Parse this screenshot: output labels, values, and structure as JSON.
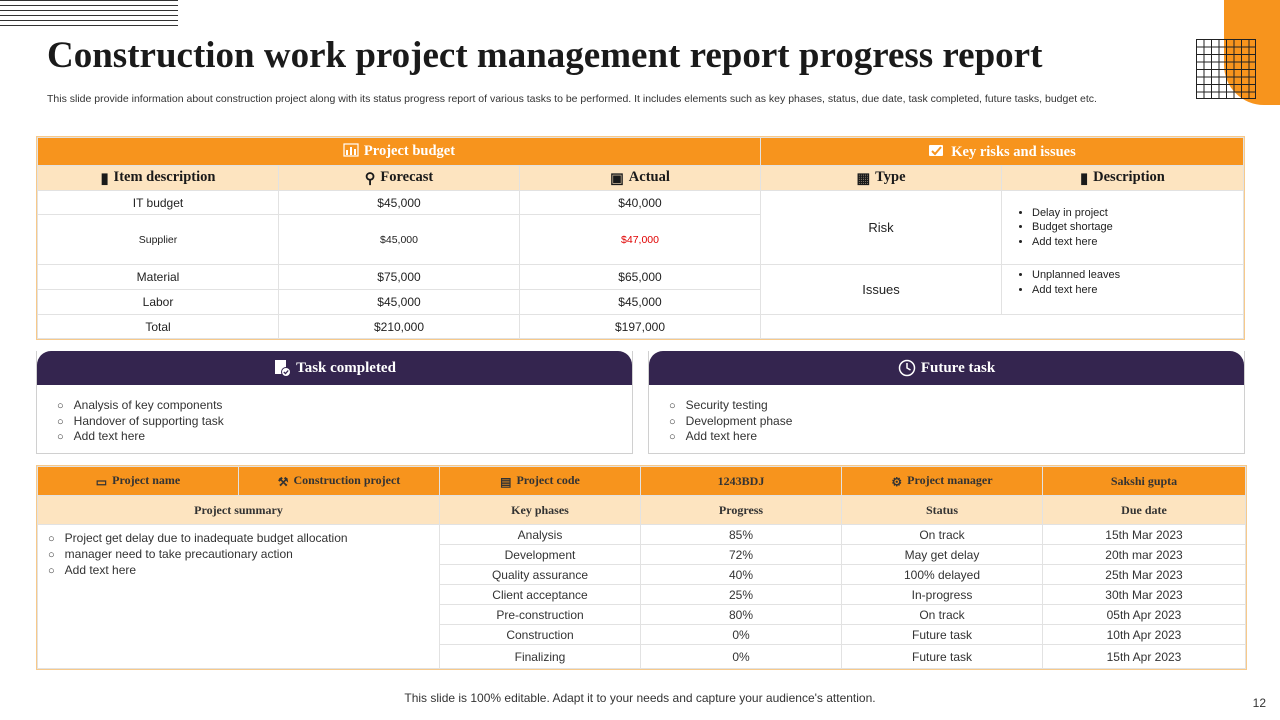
{
  "title": "Construction work project management report progress report",
  "subtitle": "This slide provide information about construction project along with its status progress report of various tasks to be performed. It includes elements such as key phases, status, due date, task completed, future tasks, budget etc.",
  "budget": {
    "header": "Project budget",
    "columns": [
      "Item description",
      "Forecast",
      "Actual"
    ],
    "rows": [
      {
        "item": "IT budget",
        "forecast": "$45,000",
        "actual": "$40,000"
      },
      {
        "item": "Supplier",
        "forecast": "$45,000",
        "actual": "$47,000"
      },
      {
        "item": "Material",
        "forecast": "$75,000",
        "actual": "$65,000"
      },
      {
        "item": "Labor",
        "forecast": "$45,000",
        "actual": "$45,000"
      },
      {
        "item": "Total",
        "forecast": "$210,000",
        "actual": "$197,000"
      }
    ],
    "over_budget_color": "#e00000"
  },
  "risks": {
    "header": "Key risks and issues",
    "columns": [
      "Type",
      "Description"
    ],
    "rows": [
      {
        "type": "Risk",
        "items": [
          "Delay in project",
          "Budget shortage",
          "Add text here"
        ]
      },
      {
        "type": "Issues",
        "items": [
          "Unplanned leaves",
          "Add text here"
        ]
      }
    ]
  },
  "task_completed": {
    "header": "Task completed",
    "items": [
      "Analysis of key components",
      "Handover of supporting task",
      "Add text here"
    ]
  },
  "future_task": {
    "header": "Future task",
    "items": [
      "Security testing",
      "Development phase",
      "Add text here"
    ]
  },
  "project": {
    "name_label": "Project name",
    "name_value": "Construction project",
    "code_label": "Project code",
    "code_value": "1243BDJ",
    "manager_label": "Project manager",
    "manager_value": "Sakshi gupta",
    "columns": [
      "Project summary",
      "Key phases",
      "Progress",
      "Status",
      "Due date"
    ],
    "summary": [
      "Project get delay due to inadequate budget allocation",
      "manager need to take precautionary action",
      "Add text here"
    ],
    "phases": [
      {
        "phase": "Analysis",
        "progress": "85%",
        "status": "On track",
        "due": "15th Mar 2023"
      },
      {
        "phase": "Development",
        "progress": "72%",
        "status": "May get delay",
        "due": "20th mar 2023"
      },
      {
        "phase": "Quality assurance",
        "progress": "40%",
        "status": "100% delayed",
        "due": "25th Mar 2023"
      },
      {
        "phase": "Client acceptance",
        "progress": "25%",
        "status": "In-progress",
        "due": "30th Mar 2023"
      },
      {
        "phase": "Pre-construction",
        "progress": "80%",
        "status": "On track",
        "due": "05th Apr 2023"
      },
      {
        "phase": "Construction",
        "progress": "0%",
        "status": "Future task",
        "due": "10th Apr 2023"
      },
      {
        "phase": "Finalizing",
        "progress": "0%",
        "status": "Future task",
        "due": "15th Apr 2023"
      }
    ]
  },
  "footer": "This slide is 100% editable. Adapt it to your needs and capture your audience's attention.",
  "page_number": "12",
  "colors": {
    "accent": "#f7941d",
    "accent_light": "#fde4c0",
    "dark_purple": "#34254f"
  }
}
